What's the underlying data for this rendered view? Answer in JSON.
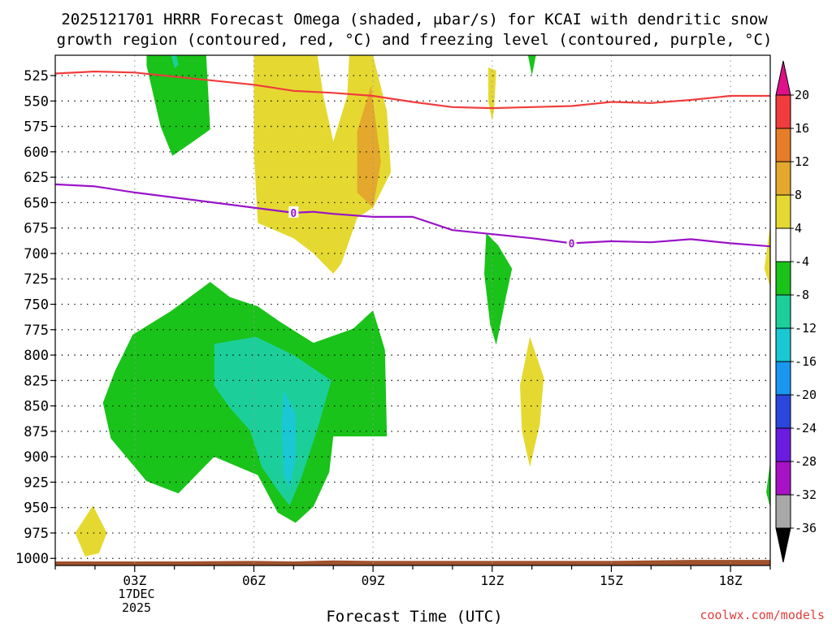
{
  "chart_data": {
    "type": "heatmap",
    "title_line1": "2025121701 HRRR Forecast Omega (shaded, μbar/s) for KCAI with dendritic snow",
    "title_line2": "growth region (contoured, red, °C) and freezing level (contoured, purple, °C)",
    "xlabel": "Forecast Time (UTC)",
    "ylabel": "",
    "date_label": [
      "17DEC",
      "2025"
    ],
    "credit": "coolwx.com/models",
    "x_range_hours": [
      1,
      19
    ],
    "y_range_mb": [
      1007,
      505
    ],
    "x_ticks": [
      {
        "hour": 3,
        "label": "03Z"
      },
      {
        "hour": 6,
        "label": "06Z"
      },
      {
        "hour": 9,
        "label": "09Z"
      },
      {
        "hour": 12,
        "label": "12Z"
      },
      {
        "hour": 15,
        "label": "15Z"
      },
      {
        "hour": 18,
        "label": "18Z"
      }
    ],
    "y_ticks": [
      525,
      550,
      575,
      600,
      625,
      650,
      675,
      700,
      725,
      750,
      775,
      800,
      825,
      850,
      875,
      900,
      925,
      950,
      975,
      1000
    ],
    "colorbar": {
      "labels": [
        "20",
        "16",
        "12",
        "8",
        "4",
        "-4",
        "-8",
        "-12",
        "-16",
        "-20",
        "-24",
        "-28",
        "-32",
        "-36"
      ],
      "bins": [
        {
          "lo": 16,
          "hi": 20,
          "color": "#f03c3c"
        },
        {
          "lo": 12,
          "hi": 16,
          "color": "#e87d28"
        },
        {
          "lo": 8,
          "hi": 12,
          "color": "#e3a82c"
        },
        {
          "lo": 4,
          "hi": 8,
          "color": "#e5d931"
        },
        {
          "lo": -4,
          "hi": 4,
          "color": "#ffffff"
        },
        {
          "lo": -8,
          "hi": -4,
          "color": "#19c319"
        },
        {
          "lo": -12,
          "hi": -8,
          "color": "#1ccf9a"
        },
        {
          "lo": -16,
          "hi": -12,
          "color": "#19c8d2"
        },
        {
          "lo": -20,
          "hi": -16,
          "color": "#1996f0"
        },
        {
          "lo": -24,
          "hi": -20,
          "color": "#2a46dc"
        },
        {
          "lo": -28,
          "hi": -24,
          "color": "#6a1ce0"
        },
        {
          "lo": -32,
          "hi": -28,
          "color": "#a812c4"
        },
        {
          "lo": -36,
          "hi": -32,
          "color": "#a8a8a8"
        }
      ],
      "top_arrow_color": "#e0108a",
      "bottom_arrow_color": "#000000"
    },
    "series": [
      {
        "name": "-12C (dendritic growth top)",
        "color": "#f03c3c",
        "points": [
          [
            1,
            523
          ],
          [
            2,
            521
          ],
          [
            3,
            522
          ],
          [
            4,
            526
          ],
          [
            5,
            530
          ],
          [
            6,
            534
          ],
          [
            7,
            540
          ],
          [
            8,
            542
          ],
          [
            9,
            545
          ],
          [
            10,
            551
          ],
          [
            11,
            556
          ],
          [
            12,
            557
          ],
          [
            13,
            556
          ],
          [
            14,
            555
          ],
          [
            15,
            551
          ],
          [
            16,
            552
          ],
          [
            17,
            549
          ],
          [
            18,
            545
          ],
          [
            19,
            545
          ]
        ]
      },
      {
        "name": "0C freezing level",
        "color": "#9a14c8",
        "label": "0",
        "label_hours": [
          7,
          14
        ],
        "points": [
          [
            1,
            632
          ],
          [
            2,
            634
          ],
          [
            3,
            640
          ],
          [
            4,
            645
          ],
          [
            5,
            650
          ],
          [
            6,
            655
          ],
          [
            7,
            660
          ],
          [
            7.5,
            659
          ],
          [
            8,
            661
          ],
          [
            9,
            664
          ],
          [
            10,
            664
          ],
          [
            11,
            677
          ],
          [
            12,
            681
          ],
          [
            13,
            685
          ],
          [
            14,
            690
          ],
          [
            15,
            688
          ],
          [
            16,
            689
          ],
          [
            17,
            686
          ],
          [
            18,
            690
          ],
          [
            19,
            693
          ]
        ]
      }
    ],
    "omega_regions": [
      {
        "fill": "#19c319",
        "points": [
          [
            3.3,
            505
          ],
          [
            4.8,
            505
          ],
          [
            4.9,
            578
          ],
          [
            4.4,
            592
          ],
          [
            3.95,
            604
          ],
          [
            3.65,
            575
          ],
          [
            3.3,
            515
          ]
        ]
      },
      {
        "fill": "#1ccf9a",
        "points": [
          [
            3.92,
            505
          ],
          [
            4.05,
            505
          ],
          [
            4.1,
            514
          ],
          [
            4.0,
            518
          ]
        ]
      },
      {
        "fill": "#19c319",
        "points": [
          [
            2.95,
            780
          ],
          [
            3.9,
            757
          ],
          [
            4.9,
            728
          ],
          [
            5.4,
            743
          ],
          [
            6.1,
            752
          ],
          [
            6.65,
            767
          ],
          [
            7.5,
            788
          ],
          [
            8.5,
            774
          ],
          [
            9.0,
            756
          ],
          [
            9.3,
            795
          ],
          [
            9.35,
            880
          ],
          [
            8.9,
            880
          ],
          [
            8.0,
            880
          ],
          [
            7.9,
            915
          ],
          [
            7.5,
            949
          ],
          [
            7.05,
            965
          ],
          [
            6.6,
            955
          ],
          [
            6.1,
            918
          ],
          [
            5.0,
            900
          ],
          [
            4.1,
            936
          ],
          [
            3.3,
            924
          ],
          [
            2.4,
            882
          ],
          [
            2.2,
            847
          ],
          [
            2.5,
            816
          ]
        ]
      },
      {
        "fill": "#1ccf9a",
        "points": [
          [
            5.0,
            789
          ],
          [
            6.05,
            782
          ],
          [
            7.0,
            800
          ],
          [
            7.95,
            825
          ],
          [
            7.6,
            873
          ],
          [
            7.2,
            920
          ],
          [
            6.9,
            948
          ],
          [
            6.6,
            933
          ],
          [
            6.2,
            910
          ],
          [
            5.9,
            874
          ],
          [
            5.4,
            852
          ],
          [
            5.0,
            830
          ]
        ]
      },
      {
        "fill": "#19c8d2",
        "points": [
          [
            6.75,
            835
          ],
          [
            7.05,
            858
          ],
          [
            7.05,
            900
          ],
          [
            6.9,
            930
          ],
          [
            6.75,
            918
          ],
          [
            6.7,
            870
          ]
        ]
      },
      {
        "fill": "#e5d931",
        "points": [
          [
            6.0,
            505
          ],
          [
            9.0,
            505
          ],
          [
            9.35,
            560
          ],
          [
            9.45,
            620
          ],
          [
            9.0,
            655
          ],
          [
            8.6,
            665
          ],
          [
            8.2,
            710
          ],
          [
            8.0,
            720
          ],
          [
            7.5,
            700
          ],
          [
            7.0,
            685
          ],
          [
            6.1,
            670
          ],
          [
            6.0,
            600
          ]
        ]
      },
      {
        "fill": "#e3a82c",
        "points": [
          [
            8.95,
            535
          ],
          [
            9.2,
            610
          ],
          [
            9.0,
            655
          ],
          [
            8.6,
            640
          ],
          [
            8.6,
            580
          ]
        ]
      },
      {
        "fill": "#ffffff",
        "points": [
          [
            7.6,
            505
          ],
          [
            8.4,
            505
          ],
          [
            8.35,
            545
          ],
          [
            8.0,
            590
          ],
          [
            7.75,
            545
          ]
        ]
      },
      {
        "fill": "#e5d931",
        "points": [
          [
            11.9,
            517
          ],
          [
            12.1,
            520
          ],
          [
            12.05,
            558
          ],
          [
            12.0,
            570
          ],
          [
            11.9,
            550
          ]
        ]
      },
      {
        "fill": "#19c319",
        "points": [
          [
            12.9,
            505
          ],
          [
            13.1,
            505
          ],
          [
            13.0,
            525
          ]
        ]
      },
      {
        "fill": "#19c319",
        "points": [
          [
            11.85,
            680
          ],
          [
            12.15,
            692
          ],
          [
            12.5,
            715
          ],
          [
            12.35,
            742
          ],
          [
            12.1,
            790
          ],
          [
            11.95,
            770
          ],
          [
            11.8,
            720
          ]
        ]
      },
      {
        "fill": "#e5d931",
        "points": [
          [
            12.7,
            830
          ],
          [
            12.95,
            782
          ],
          [
            13.3,
            822
          ],
          [
            13.2,
            868
          ],
          [
            12.95,
            910
          ],
          [
            12.75,
            875
          ]
        ]
      },
      {
        "fill": "#e5d931",
        "points": [
          [
            1.5,
            975
          ],
          [
            1.95,
            948
          ],
          [
            2.3,
            975
          ],
          [
            2.1,
            995
          ],
          [
            1.75,
            998
          ]
        ]
      },
      {
        "fill": "#e5d931",
        "points": [
          [
            19.0,
            672
          ],
          [
            18.85,
            715
          ],
          [
            19.0,
            733
          ]
        ]
      },
      {
        "fill": "#19c319",
        "points": [
          [
            19.0,
            905
          ],
          [
            18.9,
            935
          ],
          [
            19.0,
            950
          ]
        ]
      }
    ],
    "terrain": {
      "color": "#a0522d",
      "bottom_mb": 1007,
      "points": [
        [
          1,
          1003
        ],
        [
          4,
          1003
        ],
        [
          6,
          1002.5
        ],
        [
          7,
          1003
        ],
        [
          8,
          1002
        ],
        [
          9,
          1002.5
        ],
        [
          15,
          1002.5
        ],
        [
          17,
          1001.5
        ],
        [
          19,
          1001.5
        ]
      ]
    }
  }
}
